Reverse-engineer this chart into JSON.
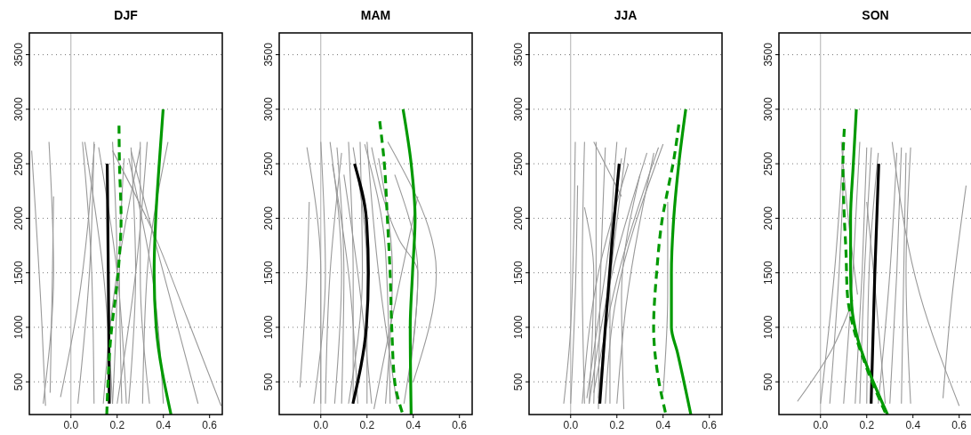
{
  "chart_data": [
    {
      "type": "line",
      "title": "DJF",
      "xlim": [
        -0.18,
        0.655
      ],
      "ylim": [
        200,
        3700
      ],
      "xticks": [
        {
          "value": 0,
          "label": "0.0"
        },
        {
          "value": 0.2,
          "label": "0.2"
        },
        {
          "value": 0.4,
          "label": "0.4"
        },
        {
          "value": 0.6,
          "label": "0.6"
        }
      ],
      "yticks": [
        500,
        1000,
        1500,
        2000,
        2500,
        3000,
        3500
      ],
      "grid": "y",
      "ref_lines": [
        {
          "axis": "x",
          "value": 0,
          "color": "#b0b0b0"
        }
      ],
      "series": [
        {
          "color": "#999999",
          "x": [
            -0.11,
            -0.125,
            -0.17
          ],
          "values": [
            280,
            1000,
            2620
          ]
        },
        {
          "color": "#999999",
          "x": [
            -0.12,
            -0.075,
            -0.095
          ],
          "values": [
            300,
            1500,
            2700
          ]
        },
        {
          "color": "#999999",
          "x": [
            -0.09,
            -0.08,
            -0.075
          ],
          "values": [
            400,
            1500,
            2200
          ]
        },
        {
          "color": "#999999",
          "x": [
            -0.045,
            0.03,
            0.102
          ],
          "values": [
            360,
            1200,
            2680
          ]
        },
        {
          "color": "#999999",
          "x": [
            0.1,
            0.09,
            0.05
          ],
          "values": [
            300,
            1500,
            2700
          ]
        },
        {
          "color": "#999999",
          "x": [
            0.03,
            0.08,
            0.1
          ],
          "values": [
            300,
            1500,
            2700
          ]
        },
        {
          "color": "#999999",
          "x": [
            0.24,
            0.2,
            0.12
          ],
          "values": [
            300,
            1500,
            2650
          ]
        },
        {
          "color": "#999999",
          "x": [
            0.18,
            0.2,
            0.18
          ],
          "values": [
            300,
            1500,
            2700
          ]
        },
        {
          "color": "#999999",
          "x": [
            0.25,
            0.28,
            0.26
          ],
          "values": [
            300,
            1500,
            2650
          ]
        },
        {
          "color": "#999999",
          "x": [
            0.2,
            0.28,
            0.33
          ],
          "values": [
            300,
            1500,
            2700
          ]
        },
        {
          "color": "#999999",
          "x": [
            0.65,
            0.5,
            0.35,
            0.18
          ],
          "values": [
            280,
            1100,
            1900,
            2620
          ]
        },
        {
          "color": "#999999",
          "x": [
            0.55,
            0.4,
            0.26
          ],
          "values": [
            300,
            1500,
            2620
          ]
        },
        {
          "color": "#999999",
          "x": [
            0.31,
            0.33,
            0.42
          ],
          "values": [
            300,
            1500,
            2700
          ]
        },
        {
          "color": "#999999",
          "x": [
            0.34,
            0.3,
            0.3
          ],
          "values": [
            300,
            1500,
            2700
          ]
        },
        {
          "color": "#999999",
          "x": [
            0.22,
            0.21,
            0.23
          ],
          "values": [
            300,
            1500,
            2550
          ]
        },
        {
          "color": "#999999",
          "x": [
            0.4,
            0.35,
            0.25
          ],
          "values": [
            300,
            1500,
            2550
          ]
        },
        {
          "color": "#999999",
          "x": [
            0.18,
            0.14,
            0.06
          ],
          "values": [
            300,
            1500,
            2700
          ]
        },
        {
          "color": "#999999",
          "x": [
            0.14,
            0.18,
            0.3
          ],
          "values": [
            300,
            1200,
            2650
          ]
        },
        {
          "color": "#000000",
          "line_style": "solid",
          "x": [
            0.166,
            0.162,
            0.157
          ],
          "values": [
            300,
            1400,
            2500
          ]
        },
        {
          "color": "#009900",
          "line_style": "dashed",
          "x": [
            0.155,
            0.172,
            0.204,
            0.217,
            0.21,
            0.208
          ],
          "values": [
            200,
            900,
            1500,
            2000,
            2500,
            2850
          ]
        },
        {
          "color": "#009900",
          "line_style": "solid",
          "x": [
            0.433,
            0.369,
            0.36,
            0.367,
            0.382,
            0.399
          ],
          "values": [
            200,
            1000,
            1500,
            2000,
            2500,
            3000
          ]
        }
      ]
    },
    {
      "type": "line",
      "title": "MAM",
      "xlim": [
        -0.18,
        0.655
      ],
      "ylim": [
        200,
        3700
      ],
      "xticks": [
        {
          "value": 0,
          "label": "0.0"
        },
        {
          "value": 0.2,
          "label": "0.2"
        },
        {
          "value": 0.4,
          "label": "0.4"
        },
        {
          "value": 0.6,
          "label": "0.6"
        }
      ],
      "yticks": [
        500,
        1000,
        1500,
        2000,
        2500,
        3000,
        3500
      ],
      "grid": "y",
      "ref_lines": [
        {
          "axis": "x",
          "value": 0,
          "color": "#b0b0b0"
        }
      ],
      "series": [
        {
          "color": "#999999",
          "x": [
            -0.09,
            -0.06,
            -0.05
          ],
          "values": [
            450,
            1500,
            2150
          ]
        },
        {
          "color": "#999999",
          "x": [
            0.0,
            0.0,
            -0.06
          ],
          "values": [
            300,
            1500,
            2650
          ]
        },
        {
          "color": "#999999",
          "x": [
            -0.03,
            0.02,
            0.0
          ],
          "values": [
            300,
            1500,
            2700
          ]
        },
        {
          "color": "#999999",
          "x": [
            0.06,
            0.09,
            0.04
          ],
          "values": [
            300,
            1500,
            2700
          ]
        },
        {
          "color": "#999999",
          "x": [
            0.09,
            0.1,
            0.07
          ],
          "values": [
            300,
            1500,
            2650
          ]
        },
        {
          "color": "#999999",
          "x": [
            0.02,
            0.04,
            0.09
          ],
          "values": [
            300,
            1500,
            2600
          ]
        },
        {
          "color": "#999999",
          "x": [
            0.14,
            0.14,
            0.12
          ],
          "values": [
            300,
            1500,
            2700
          ]
        },
        {
          "color": "#999999",
          "x": [
            0.2,
            0.2,
            0.14
          ],
          "values": [
            300,
            1500,
            2650
          ]
        },
        {
          "color": "#999999",
          "x": [
            0.12,
            0.18,
            0.17
          ],
          "values": [
            300,
            1500,
            2700
          ]
        },
        {
          "color": "#999999",
          "x": [
            0.3,
            0.28,
            0.19
          ],
          "values": [
            300,
            1700,
            2680
          ]
        },
        {
          "color": "#999999",
          "x": [
            0.36,
            0.42,
            0.34,
            0.22
          ],
          "values": [
            300,
            1500,
            1800,
            2650
          ]
        },
        {
          "color": "#999999",
          "x": [
            0.4,
            0.5,
            0.29
          ],
          "values": [
            500,
            1500,
            2700
          ]
        },
        {
          "color": "#999999",
          "x": [
            0.33,
            0.25,
            0.2
          ],
          "values": [
            300,
            1500,
            2700
          ]
        },
        {
          "color": "#999999",
          "x": [
            0.28,
            0.31,
            0.25
          ],
          "values": [
            300,
            1500,
            2550
          ]
        },
        {
          "color": "#999999",
          "x": [
            0.38,
            0.42,
            0.32
          ],
          "values": [
            500,
            1500,
            2400
          ]
        },
        {
          "color": "#999999",
          "x": [
            0.23,
            0.3,
            0.42
          ],
          "values": [
            250,
            1000,
            2200
          ]
        },
        {
          "color": "#999999",
          "x": [
            0.16,
            0.12,
            0.05
          ],
          "values": [
            300,
            1500,
            2500
          ]
        },
        {
          "color": "#999999",
          "x": [
            0.22,
            0.16,
            0.1
          ],
          "values": [
            300,
            1500,
            2400
          ]
        },
        {
          "color": "#000000",
          "line_style": "solid",
          "x": [
            0.139,
            0.197,
            0.206,
            0.197,
            0.146
          ],
          "values": [
            300,
            1000,
            1500,
            2000,
            2500
          ]
        },
        {
          "color": "#009900",
          "line_style": "dashed",
          "x": [
            0.352,
            0.32,
            0.307,
            0.3,
            0.288,
            0.275,
            0.255
          ],
          "values": [
            220,
            500,
            1000,
            1500,
            2000,
            2500,
            2890
          ]
        },
        {
          "color": "#009900",
          "line_style": "solid",
          "x": [
            0.391,
            0.387,
            0.397,
            0.408,
            0.391,
            0.356
          ],
          "values": [
            200,
            1000,
            1500,
            2000,
            2500,
            3000
          ]
        }
      ]
    },
    {
      "type": "line",
      "title": "JJA",
      "xlim": [
        -0.18,
        0.655
      ],
      "ylim": [
        200,
        3700
      ],
      "xticks": [
        {
          "value": 0,
          "label": "0.0"
        },
        {
          "value": 0.2,
          "label": "0.2"
        },
        {
          "value": 0.4,
          "label": "0.4"
        },
        {
          "value": 0.6,
          "label": "0.6"
        }
      ],
      "yticks": [
        500,
        1000,
        1500,
        2000,
        2500,
        3000,
        3500
      ],
      "grid": "y",
      "ref_lines": [
        {
          "axis": "x",
          "value": 0,
          "color": "#b0b0b0"
        }
      ],
      "series": [
        {
          "color": "#999999",
          "x": [
            -0.03,
            0.0,
            0.02
          ],
          "values": [
            300,
            1000,
            2700
          ]
        },
        {
          "color": "#999999",
          "x": [
            0.0,
            0.02,
            0.03
          ],
          "values": [
            300,
            1300,
            2300
          ]
        },
        {
          "color": "#999999",
          "x": [
            0.06,
            0.05,
            0.06
          ],
          "values": [
            300,
            1500,
            2700
          ]
        },
        {
          "color": "#999999",
          "x": [
            0.08,
            0.1,
            0.06
          ],
          "values": [
            300,
            1500,
            2100
          ]
        },
        {
          "color": "#999999",
          "x": [
            0.1,
            0.11,
            0.11
          ],
          "values": [
            300,
            1500,
            2700
          ]
        },
        {
          "color": "#999999",
          "x": [
            0.07,
            0.15,
            0.22
          ],
          "values": [
            350,
            1500,
            2550
          ]
        },
        {
          "color": "#999999",
          "x": [
            0.12,
            0.13,
            0.15
          ],
          "values": [
            250,
            1500,
            2650
          ]
        },
        {
          "color": "#999999",
          "x": [
            0.08,
            0.18,
            0.33
          ],
          "values": [
            300,
            1500,
            2600
          ]
        },
        {
          "color": "#999999",
          "x": [
            0.1,
            0.22,
            0.38
          ],
          "values": [
            400,
            1600,
            2650
          ]
        },
        {
          "color": "#999999",
          "x": [
            0.15,
            0.2,
            0.4
          ],
          "values": [
            300,
            1300,
            2680
          ]
        },
        {
          "color": "#999999",
          "x": [
            0.2,
            0.24,
            0.36
          ],
          "values": [
            300,
            1200,
            2600
          ]
        },
        {
          "color": "#999999",
          "x": [
            0.23,
            0.22,
            0.3
          ],
          "values": [
            250,
            1300,
            2400
          ]
        },
        {
          "color": "#999999",
          "x": [
            0.17,
            0.17,
            0.2
          ],
          "values": [
            300,
            1500,
            2700
          ]
        },
        {
          "color": "#999999",
          "x": [
            0.12,
            0.19,
            0.24
          ],
          "values": [
            350,
            1800,
            2650
          ]
        },
        {
          "color": "#999999",
          "x": [
            0.22,
            0.1
          ],
          "values": [
            2200,
            2700
          ]
        },
        {
          "color": "#999999",
          "x": [
            0.4,
            0.42,
            0.42
          ],
          "values": [
            400,
            1300,
            2150
          ]
        },
        {
          "color": "#999999",
          "x": [
            0.05,
            0.12,
            0.25
          ],
          "values": [
            300,
            1500,
            2500
          ]
        },
        {
          "color": "#000000",
          "line_style": "solid",
          "x": [
            0.126,
            0.15,
            0.18,
            0.21
          ],
          "values": [
            300,
            1000,
            1800,
            2500
          ]
        },
        {
          "color": "#009900",
          "line_style": "dashed",
          "x": [
            0.41,
            0.378,
            0.359,
            0.372,
            0.397,
            0.423,
            0.443,
            0.468
          ],
          "values": [
            220,
            550,
            1000,
            1500,
            2000,
            2290,
            2500,
            2860
          ]
        },
        {
          "color": "#009900",
          "line_style": "solid",
          "x": [
            0.52,
            0.462,
            0.436,
            0.436,
            0.446,
            0.468,
            0.498
          ],
          "values": [
            200,
            770,
            1000,
            1500,
            2000,
            2500,
            3000
          ]
        }
      ]
    },
    {
      "type": "line",
      "title": "SON",
      "xlim": [
        -0.18,
        0.655
      ],
      "ylim": [
        200,
        3700
      ],
      "xticks": [
        {
          "value": 0,
          "label": "0.0"
        },
        {
          "value": 0.2,
          "label": "0.2"
        },
        {
          "value": 0.4,
          "label": "0.4"
        },
        {
          "value": 0.6,
          "label": "0.6"
        }
      ],
      "yticks": [
        500,
        1000,
        1500,
        2000,
        2500,
        3000,
        3500
      ],
      "grid": "y",
      "ref_lines": [
        {
          "axis": "x",
          "value": 0,
          "color": "#b0b0b0"
        }
      ],
      "series": [
        {
          "color": "#999999",
          "x": [
            -0.1,
            0.05,
            0.14
          ],
          "values": [
            320,
            800,
            1250
          ]
        },
        {
          "color": "#999999",
          "x": [
            0.0,
            0.06,
            0.1
          ],
          "values": [
            300,
            1500,
            2700
          ]
        },
        {
          "color": "#999999",
          "x": [
            0.04,
            0.08,
            0.1
          ],
          "values": [
            300,
            1500,
            2400
          ]
        },
        {
          "color": "#999999",
          "x": [
            0.1,
            0.14,
            0.17
          ],
          "values": [
            300,
            1500,
            2700
          ]
        },
        {
          "color": "#999999",
          "x": [
            0.15,
            0.18,
            0.2
          ],
          "values": [
            300,
            1500,
            2650
          ]
        },
        {
          "color": "#999999",
          "x": [
            0.17,
            0.19,
            0.22
          ],
          "values": [
            300,
            1500,
            2650
          ]
        },
        {
          "color": "#999999",
          "x": [
            0.2,
            0.21,
            0.25
          ],
          "values": [
            300,
            1500,
            2600
          ]
        },
        {
          "color": "#999999",
          "x": [
            0.28,
            0.23,
            0.2
          ],
          "values": [
            300,
            1500,
            2150
          ]
        },
        {
          "color": "#999999",
          "x": [
            0.3,
            0.33,
            0.35
          ],
          "values": [
            300,
            1500,
            2650
          ]
        },
        {
          "color": "#999999",
          "x": [
            0.35,
            0.36,
            0.37
          ],
          "values": [
            300,
            1500,
            2600
          ]
        },
        {
          "color": "#999999",
          "x": [
            0.6,
            0.43,
            0.31
          ],
          "values": [
            280,
            1300,
            2700
          ]
        },
        {
          "color": "#999999",
          "x": [
            0.53,
            0.57,
            0.63
          ],
          "values": [
            350,
            1300,
            2300
          ]
        },
        {
          "color": "#999999",
          "x": [
            0.39,
            0.37,
            0.39
          ],
          "values": [
            300,
            1500,
            2650
          ]
        },
        {
          "color": "#999999",
          "x": [
            0.25,
            0.3,
            0.33
          ],
          "values": [
            300,
            1500,
            2600
          ]
        },
        {
          "color": "#999999",
          "x": [
            0.16,
            0.12,
            0.09
          ],
          "values": [
            1300,
            2000,
            2700
          ]
        },
        {
          "color": "#000000",
          "line_style": "solid",
          "x": [
            0.219,
            0.235,
            0.252
          ],
          "values": [
            300,
            1500,
            2500
          ]
        },
        {
          "color": "#009900",
          "line_style": "dashed",
          "x": [
            0.28,
            0.194,
            0.142,
            0.116,
            0.11,
            0.103,
            0.097,
            0.103
          ],
          "values": [
            220,
            660,
            1000,
            1310,
            1700,
            2000,
            2500,
            2820
          ]
        },
        {
          "color": "#009900",
          "line_style": "solid",
          "x": [
            0.29,
            0.2,
            0.16,
            0.135,
            0.13,
            0.13,
            0.142,
            0.155
          ],
          "values": [
            200,
            650,
            900,
            1200,
            1500,
            2000,
            2500,
            3000
          ]
        }
      ]
    }
  ]
}
